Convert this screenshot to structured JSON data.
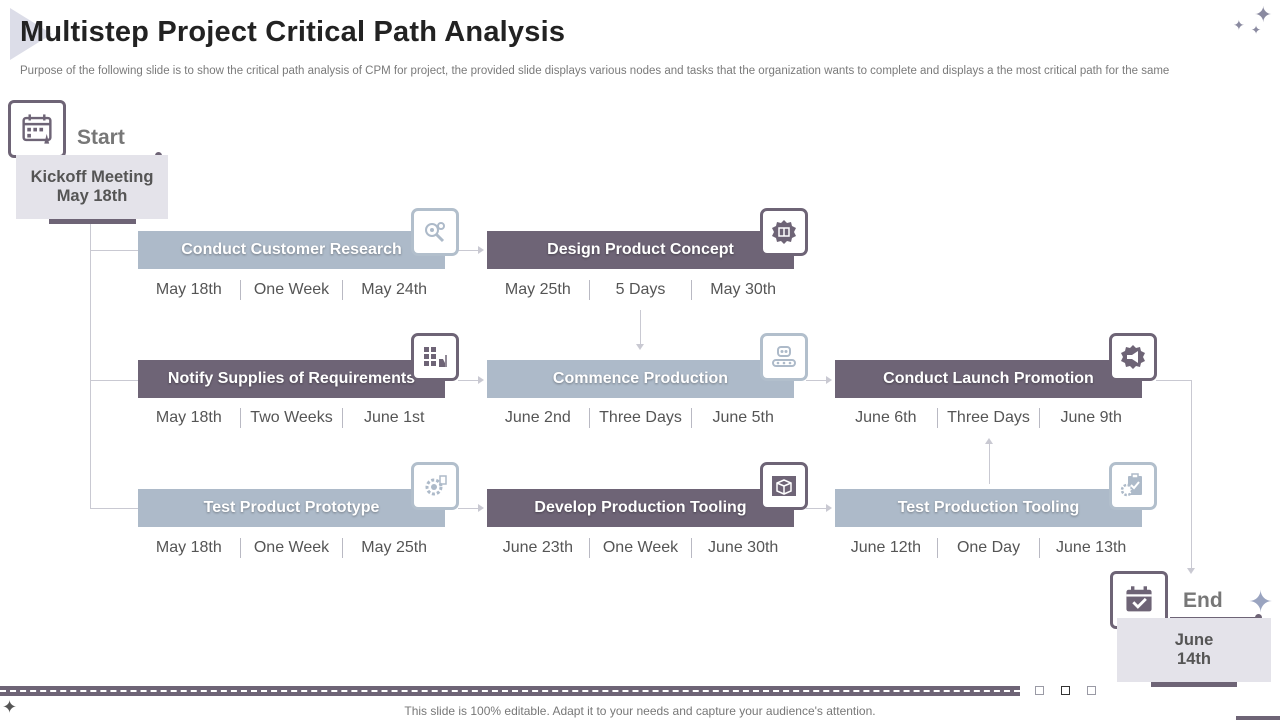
{
  "title": "Multistep Project Critical Path Analysis",
  "subtitle": "Purpose of the following slide is to show the critical path analysis of CPM for project, the provided slide displays various nodes and tasks that the organization wants to complete  and displays a the most critical path for the same",
  "start": {
    "label": "Start",
    "milestone_line1": "Kickoff Meeting",
    "milestone_line2": "May 18th",
    "icon": "calendar-rocket-icon"
  },
  "end": {
    "label": "End",
    "milestone_line1": "June",
    "milestone_line2": "14th",
    "icon": "calendar-check-icon"
  },
  "tasks": [
    {
      "name": "Conduct Customer Research",
      "start": "May 18th",
      "duration": "One Week",
      "end": "May 24th",
      "style": "light",
      "icon": "research-gears-icon"
    },
    {
      "name": "Design Product Concept",
      "start": "May 25th",
      "duration": "5 Days",
      "end": "May 30th",
      "style": "dark",
      "icon": "product-box-icon"
    },
    {
      "name": "Notify Supplies of Requirements",
      "start": "May 18th",
      "duration": "Two Weeks",
      "end": "June 1st",
      "style": "dark",
      "icon": "warehouse-forklift-icon"
    },
    {
      "name": "Commence Production",
      "start": "June 2nd",
      "duration": "Three Days",
      "end": "June 5th",
      "style": "light",
      "icon": "conveyor-robot-icon"
    },
    {
      "name": "Conduct Launch Promotion",
      "start": "June 6th",
      "duration": "Three Days",
      "end": "June 9th",
      "style": "dark",
      "icon": "megaphone-icon"
    },
    {
      "name": "Test Product Prototype",
      "start": "May 18th",
      "duration": "One Week",
      "end": "May 25th",
      "style": "light",
      "icon": "test-gear-icon"
    },
    {
      "name": "Develop Production Tooling",
      "start": "June 23th",
      "duration": "One Week",
      "end": "June 30th",
      "style": "dark",
      "icon": "blueprint-cube-icon"
    },
    {
      "name": "Test Production Tooling",
      "start": "June 12th",
      "duration": "One Day",
      "end": "June 13th",
      "style": "light",
      "icon": "clipboard-gear-icon"
    }
  ],
  "colors": {
    "dark": "#6e6476",
    "light": "#adbac9",
    "connector": "#c9c9d2"
  },
  "footer": "This slide is 100% editable. Adapt it to your needs and capture your audience's attention."
}
